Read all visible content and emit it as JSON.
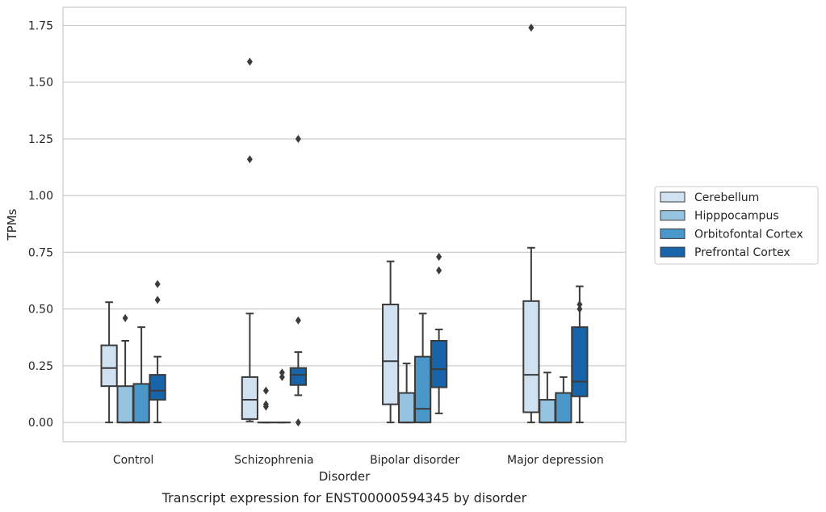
{
  "caption": "Transcript expression for ENST00000594345 by disorder",
  "chart_data": {
    "type": "box",
    "title": "",
    "xlabel": "Disorder",
    "ylabel": "TPMs",
    "ylim": [
      -0.085,
      1.83
    ],
    "yticks": [
      "0.00",
      "0.25",
      "0.50",
      "0.75",
      "1.00",
      "1.25",
      "1.50",
      "1.75"
    ],
    "categories": [
      "Control",
      "Schizophrenia",
      "Bipolar disorder",
      "Major depression"
    ],
    "grid": true,
    "legend": "right",
    "series": [
      {
        "name": "Cerebellum",
        "color": "#d0e1f2",
        "boxes": [
          {
            "whislo": 0.0,
            "q1": 0.16,
            "med": 0.24,
            "q3": 0.34,
            "whishi": 0.53,
            "fliers": []
          },
          {
            "whislo": 0.005,
            "q1": 0.015,
            "med": 0.1,
            "q3": 0.2,
            "whishi": 0.48,
            "fliers": [
              1.16,
              1.59
            ]
          },
          {
            "whislo": 0.0,
            "q1": 0.08,
            "med": 0.27,
            "q3": 0.52,
            "whishi": 0.71,
            "fliers": []
          },
          {
            "whislo": 0.0,
            "q1": 0.045,
            "med": 0.21,
            "q3": 0.535,
            "whishi": 0.77,
            "fliers": [
              1.74
            ]
          }
        ]
      },
      {
        "name": "Hipppocampus",
        "color": "#94c4df",
        "boxes": [
          {
            "whislo": 0.0,
            "q1": 0.0,
            "med": 0.0,
            "q3": 0.16,
            "whishi": 0.36,
            "fliers": [
              0.46
            ]
          },
          {
            "whislo": 0.0,
            "q1": 0.0,
            "med": 0.0,
            "q3": 0.0,
            "whishi": 0.0,
            "fliers": [
              0.07,
              0.08,
              0.14
            ]
          },
          {
            "whislo": 0.0,
            "q1": 0.0,
            "med": 0.0,
            "q3": 0.13,
            "whishi": 0.26,
            "fliers": []
          },
          {
            "whislo": 0.0,
            "q1": 0.0,
            "med": 0.0,
            "q3": 0.1,
            "whishi": 0.22,
            "fliers": []
          }
        ]
      },
      {
        "name": "Orbitofontal Cortex",
        "color": "#4a98c9",
        "boxes": [
          {
            "whislo": 0.0,
            "q1": 0.0,
            "med": 0.0,
            "q3": 0.17,
            "whishi": 0.42,
            "fliers": []
          },
          {
            "whislo": 0.0,
            "q1": 0.0,
            "med": 0.0,
            "q3": 0.0,
            "whishi": 0.0,
            "fliers": [
              0.2,
              0.22
            ]
          },
          {
            "whislo": 0.0,
            "q1": 0.0,
            "med": 0.06,
            "q3": 0.29,
            "whishi": 0.48,
            "fliers": []
          },
          {
            "whislo": 0.0,
            "q1": 0.0,
            "med": 0.0,
            "q3": 0.13,
            "whishi": 0.2,
            "fliers": []
          }
        ]
      },
      {
        "name": "Prefrontal Cortex",
        "color": "#1764ab",
        "boxes": [
          {
            "whislo": 0.0,
            "q1": 0.1,
            "med": 0.14,
            "q3": 0.21,
            "whishi": 0.29,
            "fliers": [
              0.54,
              0.61
            ]
          },
          {
            "whislo": 0.12,
            "q1": 0.165,
            "med": 0.21,
            "q3": 0.24,
            "whishi": 0.31,
            "fliers": [
              0.0,
              0.45,
              1.25
            ]
          },
          {
            "whislo": 0.04,
            "q1": 0.155,
            "med": 0.235,
            "q3": 0.36,
            "whishi": 0.41,
            "fliers": [
              0.67,
              0.73
            ]
          },
          {
            "whislo": 0.0,
            "q1": 0.115,
            "med": 0.18,
            "q3": 0.42,
            "whishi": 0.6,
            "fliers": [
              0.5,
              0.52
            ]
          }
        ]
      }
    ]
  }
}
